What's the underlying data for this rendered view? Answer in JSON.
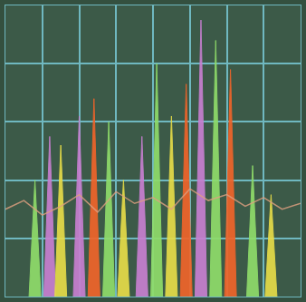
{
  "chart_data": {
    "type": "bar",
    "marker": "spike",
    "grid": true,
    "tick_labels": false,
    "xlim": [
      0,
      80
    ],
    "ylim": [
      0,
      100
    ],
    "xticks": [
      0,
      10,
      20,
      30,
      40,
      50,
      60,
      70,
      80
    ],
    "yticks": [
      0,
      20,
      40,
      60,
      80,
      100
    ],
    "series": [
      {
        "type": "bar",
        "x": [
          8,
          12,
          15,
          20,
          24,
          28,
          32,
          37,
          41,
          45,
          49,
          53,
          57,
          61,
          67,
          72
        ],
        "values": [
          40,
          55,
          52,
          62,
          68,
          60,
          40,
          55,
          80,
          62,
          73,
          95,
          88,
          78,
          45,
          35
        ],
        "colors": [
          "#8fdc6a",
          "#c77fd0",
          "#e6dc48",
          "#c77fd0",
          "#f0642a",
          "#8fdc6a",
          "#e6dc48",
          "#c77fd0",
          "#8fdc6a",
          "#e6dc48",
          "#f0642a",
          "#c77fd0",
          "#8fdc6a",
          "#f0642a",
          "#8fdc6a",
          "#e6dc48"
        ]
      },
      {
        "type": "line",
        "color": "#e0a080",
        "x": [
          0,
          5,
          10,
          15,
          20,
          25,
          30,
          35,
          40,
          45,
          50,
          55,
          60,
          65,
          70,
          75,
          80
        ],
        "values": [
          30,
          33,
          28,
          31,
          35,
          29,
          36,
          32,
          34,
          30,
          37,
          33,
          35,
          31,
          34,
          30,
          32
        ]
      }
    ]
  }
}
